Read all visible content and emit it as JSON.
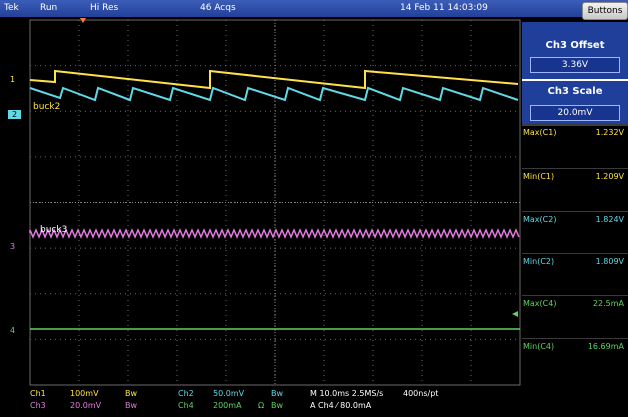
{
  "header": {
    "brand": "Tek",
    "run_state": "Run",
    "mode": "Hi Res",
    "acqs": "46 Acqs",
    "datetime": "14 Feb 11 14:03:09",
    "buttons_label": "Buttons"
  },
  "side_panel": {
    "offset_title": "Ch3 Offset",
    "offset_value": "3.36V",
    "scale_title": "Ch3 Scale",
    "scale_value": "20.0mV"
  },
  "measurements": [
    {
      "label": "Max(C1)",
      "value": "1.232V",
      "color": "#ffe14a"
    },
    {
      "label": "Min(C1)",
      "value": "1.209V",
      "color": "#ffe14a"
    },
    {
      "label": "Max(C2)",
      "value": "1.824V",
      "color": "#62d7e6"
    },
    {
      "label": "Min(C2)",
      "value": "1.809V",
      "color": "#62d7e6"
    },
    {
      "label": "Max(C4)",
      "value": "22.5mA",
      "color": "#5fd35f"
    },
    {
      "label": "Min(C4)",
      "value": "16.69mA",
      "color": "#5fd35f"
    }
  ],
  "waveform_labels": {
    "buck2": "buck2",
    "buck3": "buck3"
  },
  "channel_markers": [
    "1",
    "2",
    "3",
    "4"
  ],
  "status": {
    "ch1": "Ch1",
    "ch1_scale": "100mV",
    "ch1_bw": "Bw",
    "ch2": "Ch2",
    "ch2_scale": "50.0mV",
    "ch2_bw": "Bw",
    "ch3": "Ch3",
    "ch3_scale": "20.0mV",
    "ch3_bw": "Bw",
    "ch4": "Ch4",
    "ch4_scale": "200mA",
    "ch4_ohm": "Ω",
    "ch4_bw": "Bw",
    "timebase": "M 10.0ms 2.5MS/s",
    "record": "400ns/pt",
    "trigger": "A  Ch4  ⁄  80.0mA"
  },
  "colors": {
    "ch1": "#ffe14a",
    "ch2": "#62d7e6",
    "ch3": "#e27be0",
    "ch4": "#5fd35f",
    "grid": "#6a6a6a",
    "panel": "#1f3f9a"
  }
}
